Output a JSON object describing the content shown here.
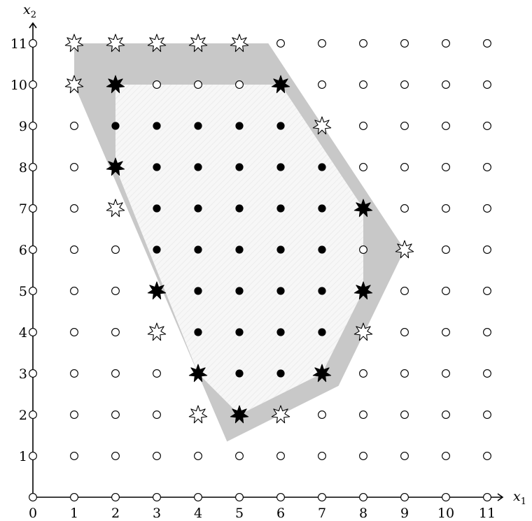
{
  "diagram": {
    "x_axis_label": "x",
    "x_axis_subscript": "1",
    "y_axis_label": "x",
    "y_axis_subscript": "2",
    "x_range": [
      0,
      11
    ],
    "y_range": [
      0,
      11
    ],
    "x_ticks": [
      "0",
      "1",
      "2",
      "3",
      "4",
      "5",
      "6",
      "7",
      "8",
      "9",
      "10",
      "11"
    ],
    "y_ticks": [
      "1",
      "2",
      "3",
      "4",
      "5",
      "6",
      "7",
      "8",
      "9",
      "10",
      "11"
    ],
    "outer_region": [
      [
        1,
        11
      ],
      [
        5.7,
        11
      ],
      [
        9,
        6
      ],
      [
        7.4,
        2.7
      ],
      [
        4.7,
        1.35
      ],
      [
        1,
        10
      ]
    ],
    "inner_region": [
      [
        2,
        10
      ],
      [
        6,
        10
      ],
      [
        8,
        7
      ],
      [
        8,
        5
      ],
      [
        7,
        3
      ],
      [
        5,
        2
      ],
      [
        4,
        3
      ],
      [
        2,
        8
      ]
    ],
    "black_stars": [
      [
        2,
        10
      ],
      [
        6,
        10
      ],
      [
        2,
        8
      ],
      [
        8,
        7
      ],
      [
        3,
        5
      ],
      [
        8,
        5
      ],
      [
        4,
        3
      ],
      [
        7,
        3
      ],
      [
        5,
        2
      ]
    ],
    "white_stars": [
      [
        1,
        11
      ],
      [
        2,
        11
      ],
      [
        3,
        11
      ],
      [
        4,
        11
      ],
      [
        5,
        11
      ],
      [
        1,
        10
      ],
      [
        7,
        9
      ],
      [
        2,
        7
      ],
      [
        9,
        6
      ],
      [
        3,
        4
      ],
      [
        8,
        4
      ],
      [
        4,
        2
      ],
      [
        6,
        2
      ]
    ],
    "grid_symbols": {
      "interior": "filled-dot",
      "exterior": "open-circle",
      "black_star": "black-star",
      "white_star": "white-star"
    },
    "colors": {
      "outer_region": "#c8c8c8",
      "inner_region": "#f7f7f7",
      "ink": "#000000",
      "open": "#ffffff"
    }
  }
}
